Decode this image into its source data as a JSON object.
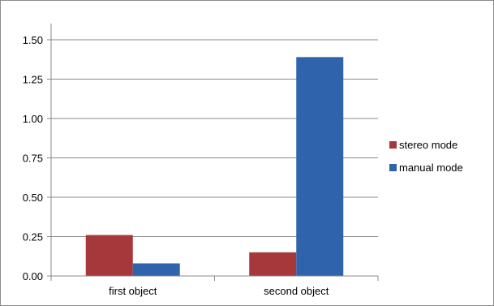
{
  "chart_data": {
    "type": "bar",
    "title": "",
    "xlabel": "",
    "ylabel": "",
    "categories": [
      "first object",
      "second object"
    ],
    "series": [
      {
        "name": "stereo mode",
        "color": "#a6373a",
        "values": [
          0.26,
          0.15
        ]
      },
      {
        "name": "manual mode",
        "color": "#2f64ad",
        "values": [
          0.08,
          1.39
        ]
      }
    ],
    "ylim": [
      0,
      1.5
    ],
    "yticks": [
      "0.00",
      "0.25",
      "0.50",
      "0.75",
      "1.00",
      "1.25",
      "1.50"
    ],
    "grid": true,
    "legend_position": "right"
  }
}
